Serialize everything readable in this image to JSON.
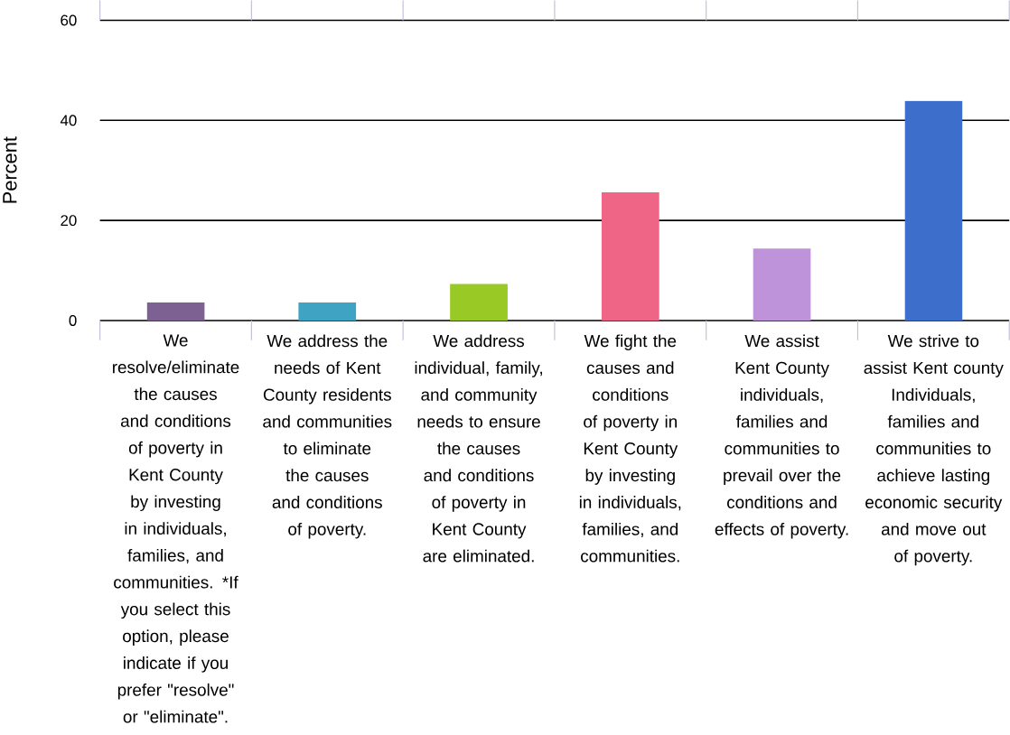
{
  "chart_data": {
    "type": "bar",
    "ylabel": "Percent",
    "categories": [
      "We resolve/eliminate the causes and conditions of poverty in Kent County by investing in individuals, families, and communities. *If you select this option, please indicate if you prefer \"resolve\" or \"eliminate\".",
      "We address the needs of Kent County residents and communities to eliminate the causes and conditions of poverty.",
      "We address individual, family, and community needs to ensure the causes and conditions of poverty in Kent County are eliminated.",
      "We fight the causes and conditions of poverty in Kent County by investing in individuals, families, and communities.",
      "We assist Kent County individuals, families and communities to prevail over the conditions and effects of poverty.",
      "We strive to assist Kent county Individuals, families and communities to achieve lasting economic security and move out of poverty."
    ],
    "values": [
      3.6,
      3.6,
      7.3,
      25.6,
      14.4,
      43.9
    ],
    "colors": [
      "#7e6193",
      "#3fa3c4",
      "#98c925",
      "#ef6586",
      "#bf93da",
      "#3d6ecb"
    ],
    "ylim": [
      0,
      60
    ],
    "yticks": [
      0,
      20,
      40,
      60
    ],
    "grid": "y"
  }
}
